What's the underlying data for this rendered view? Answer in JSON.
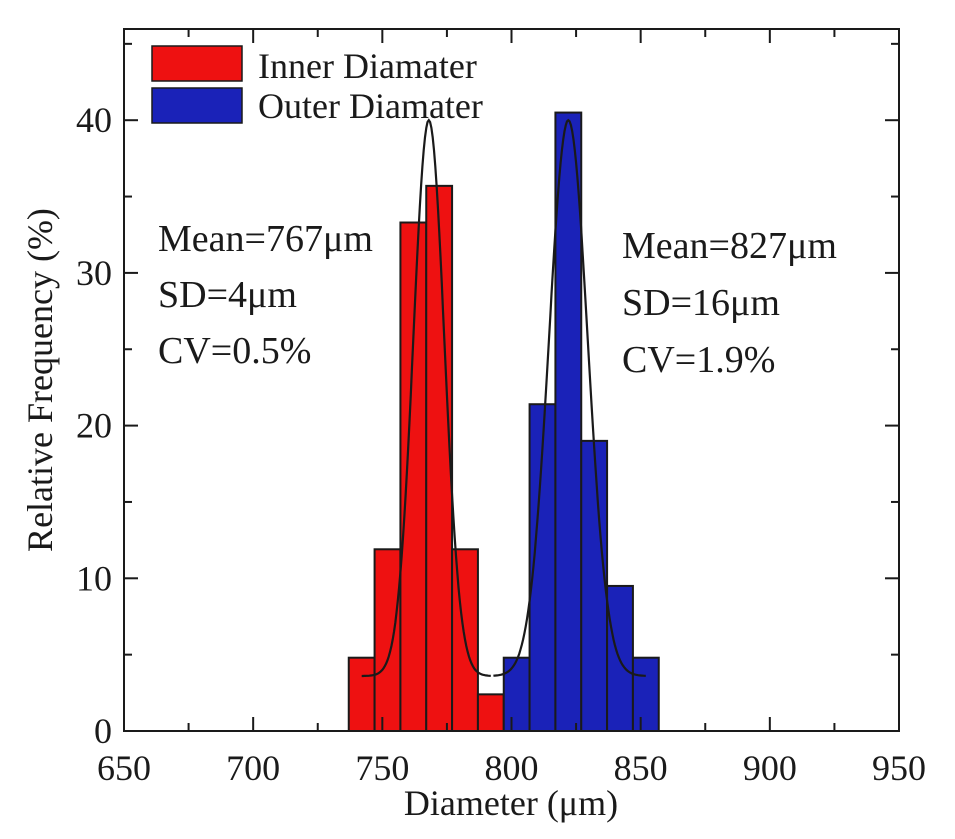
{
  "chart_data": {
    "type": "bar",
    "title": "",
    "xlabel": "Diameter (μm)",
    "ylabel": "Relative Frequency  (%)",
    "xlim": [
      650,
      950
    ],
    "ylim": [
      0,
      46
    ],
    "xticks": [
      650,
      700,
      750,
      800,
      850,
      900,
      950
    ],
    "xtick_labels": [
      "650",
      "700",
      "750",
      "800",
      "850",
      "900",
      "950"
    ],
    "yticks": [
      0,
      10,
      20,
      30,
      40
    ],
    "ytick_labels": [
      "0",
      "10",
      "20",
      "30",
      "40"
    ],
    "bin_width": 10,
    "legend_position": "top-left",
    "series": [
      {
        "name": "Inner Diamater",
        "color": "#ee1111",
        "bin_starts": [
          737,
          747,
          757,
          767,
          777,
          787
        ],
        "values": [
          4.8,
          11.9,
          33.3,
          35.7,
          11.9,
          2.4
        ],
        "fit": {
          "mean": 768,
          "sd": 6.0,
          "peak": 40,
          "baseline": 3.6,
          "range": [
            742,
            792
          ]
        }
      },
      {
        "name": "Outer Diamater",
        "color": "#1a22b8",
        "bin_starts": [
          797,
          807,
          817,
          827,
          837,
          847
        ],
        "values": [
          4.8,
          21.4,
          40.5,
          19.0,
          9.5,
          4.8
        ],
        "fit": {
          "mean": 822,
          "sd": 7.5,
          "peak": 40,
          "baseline": 3.6,
          "range": [
            793,
            852
          ]
        }
      }
    ],
    "annotations": [
      {
        "group": "inner",
        "lines": [
          "Mean=767μm",
          "SD=4μm",
          "CV=0.5%"
        ]
      },
      {
        "group": "outer",
        "lines": [
          "Mean=827μm",
          "SD=16μm",
          "CV=1.9%"
        ]
      }
    ]
  }
}
